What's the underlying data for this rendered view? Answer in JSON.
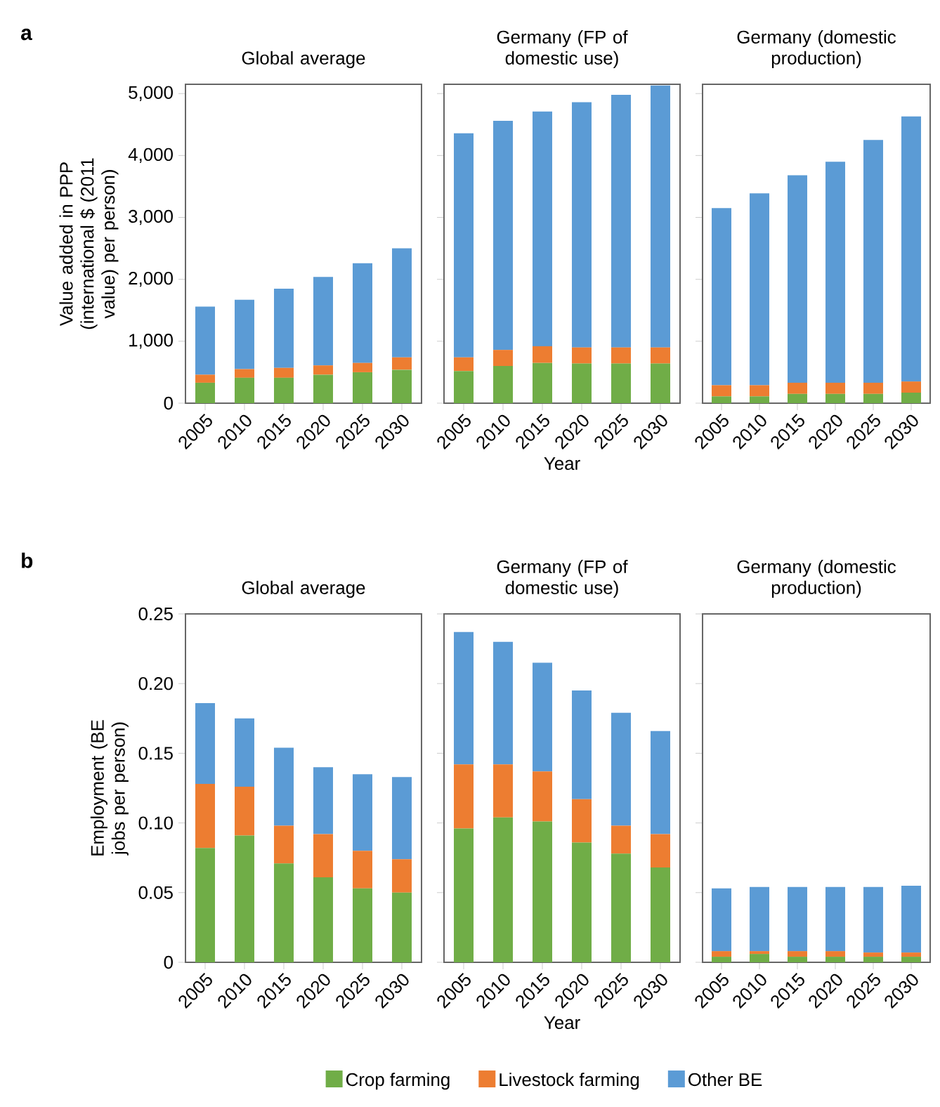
{
  "chart_data": [
    {
      "type": "bar",
      "stacked": true,
      "title": "Global average",
      "ylabel": "Value added in PPP (international $ (2011 value) per person)",
      "annotations": [
        "a"
      ],
      "categories": [
        "2005",
        "2010",
        "2015",
        "2020",
        "2025",
        "2030"
      ],
      "ylim": [
        0,
        5150
      ],
      "yticks": [
        {
          "value": 0,
          "label": "0"
        },
        {
          "value": 1000,
          "label": "1,000"
        },
        {
          "value": 2000,
          "label": "2,000"
        },
        {
          "value": 3000,
          "label": "3,000"
        },
        {
          "value": 4000,
          "label": "4,000"
        },
        {
          "value": 5000,
          "label": "5,000"
        }
      ],
      "grid": false,
      "legend": false,
      "series": [
        {
          "color": "#70ad47",
          "values": [
            330,
            410,
            410,
            460,
            500,
            540
          ]
        },
        {
          "color": "#ed7d31",
          "values": [
            130,
            140,
            160,
            150,
            150,
            200
          ]
        },
        {
          "color": "#5b9bd5",
          "values": [
            1100,
            1120,
            1280,
            1430,
            1610,
            1760
          ]
        }
      ]
    },
    {
      "type": "bar",
      "stacked": true,
      "title": "Germany (FP of domestic use)",
      "xlabel": "Year",
      "categories": [
        "2005",
        "2010",
        "2015",
        "2020",
        "2025",
        "2030"
      ],
      "ylim": [
        0,
        5150
      ],
      "yticks": [
        0,
        1000,
        2000,
        3000,
        4000,
        5000
      ],
      "tick_labels": "x",
      "grid": false,
      "legend": false,
      "series": [
        {
          "color": "#70ad47",
          "values": [
            520,
            600,
            650,
            640,
            640,
            640
          ]
        },
        {
          "color": "#ed7d31",
          "values": [
            220,
            260,
            270,
            260,
            260,
            260
          ]
        },
        {
          "color": "#5b9bd5",
          "values": [
            3620,
            3700,
            3790,
            3960,
            4080,
            4230
          ]
        }
      ]
    },
    {
      "type": "bar",
      "stacked": true,
      "title": "Germany (domestic production)",
      "categories": [
        "2005",
        "2010",
        "2015",
        "2020",
        "2025",
        "2030"
      ],
      "ylim": [
        0,
        5150
      ],
      "yticks": [
        0,
        1000,
        2000,
        3000,
        4000,
        5000
      ],
      "tick_labels": "x",
      "grid": false,
      "legend": false,
      "series": [
        {
          "color": "#70ad47",
          "values": [
            110,
            110,
            150,
            150,
            150,
            170
          ]
        },
        {
          "color": "#ed7d31",
          "values": [
            180,
            180,
            180,
            180,
            180,
            180
          ]
        },
        {
          "color": "#5b9bd5",
          "values": [
            2860,
            3100,
            3350,
            3570,
            3920,
            4280
          ]
        }
      ]
    },
    {
      "type": "bar",
      "stacked": true,
      "title": "Global average",
      "ylabel": "Employment (BE jobs per person)",
      "annotations": [
        "b"
      ],
      "categories": [
        "2005",
        "2010",
        "2015",
        "2020",
        "2025",
        "2030"
      ],
      "ylim": [
        0,
        0.25
      ],
      "yticks": [
        {
          "value": 0,
          "label": "0"
        },
        {
          "value": 0.05,
          "label": "0.05"
        },
        {
          "value": 0.1,
          "label": "0.10"
        },
        {
          "value": 0.15,
          "label": "0.15"
        },
        {
          "value": 0.2,
          "label": "0.20"
        },
        {
          "value": 0.25,
          "label": "0.25"
        }
      ],
      "grid": false,
      "legend": false,
      "series": [
        {
          "color": "#70ad47",
          "values": [
            0.082,
            0.091,
            0.071,
            0.061,
            0.053,
            0.05
          ]
        },
        {
          "color": "#ed7d31",
          "values": [
            0.046,
            0.035,
            0.027,
            0.031,
            0.027,
            0.024
          ]
        },
        {
          "color": "#5b9bd5",
          "values": [
            0.058,
            0.049,
            0.056,
            0.048,
            0.055,
            0.059
          ]
        }
      ]
    },
    {
      "type": "bar",
      "stacked": true,
      "title": "Germany (FP of domestic use)",
      "xlabel": "Year",
      "categories": [
        "2005",
        "2010",
        "2015",
        "2020",
        "2025",
        "2030"
      ],
      "ylim": [
        0,
        0.25
      ],
      "yticks": [
        0,
        0.05,
        0.1,
        0.15,
        0.2,
        0.25
      ],
      "tick_labels": "x",
      "grid": false,
      "legend": "bottom",
      "series": [
        {
          "name": "Crop farming",
          "color": "#70ad47",
          "values": [
            0.096,
            0.104,
            0.101,
            0.086,
            0.078,
            0.068
          ]
        },
        {
          "name": "Livestock farming",
          "color": "#ed7d31",
          "values": [
            0.046,
            0.038,
            0.036,
            0.031,
            0.02,
            0.024
          ]
        },
        {
          "name": "Other BE",
          "color": "#5b9bd5",
          "values": [
            0.095,
            0.088,
            0.078,
            0.078,
            0.081,
            0.074
          ]
        }
      ]
    },
    {
      "type": "bar",
      "stacked": true,
      "title": "Germany (domestic production)",
      "categories": [
        "2005",
        "2010",
        "2015",
        "2020",
        "2025",
        "2030"
      ],
      "ylim": [
        0,
        0.25
      ],
      "yticks": [
        0,
        0.05,
        0.1,
        0.15,
        0.2,
        0.25
      ],
      "tick_labels": "x",
      "grid": false,
      "legend": false,
      "series": [
        {
          "color": "#70ad47",
          "values": [
            0.004,
            0.006,
            0.004,
            0.004,
            0.004,
            0.004
          ]
        },
        {
          "color": "#ed7d31",
          "values": [
            0.004,
            0.002,
            0.004,
            0.004,
            0.003,
            0.003
          ]
        },
        {
          "color": "#5b9bd5",
          "values": [
            0.045,
            0.046,
            0.046,
            0.046,
            0.047,
            0.048
          ]
        }
      ]
    }
  ]
}
